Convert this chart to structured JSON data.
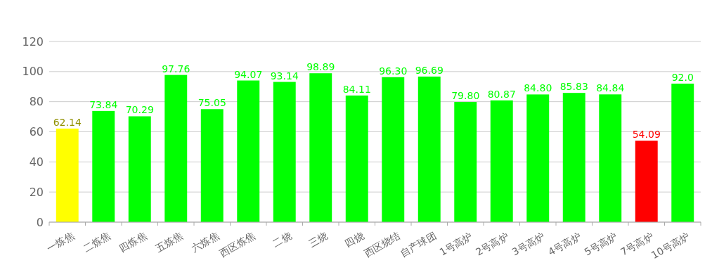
{
  "chart_data": {
    "type": "bar",
    "categories": [
      "一炼焦",
      "二炼焦",
      "四炼焦",
      "五炼焦",
      "六炼焦",
      "西区炼焦",
      "二烧",
      "三烧",
      "四烧",
      "西区烧结",
      "自产球团",
      "1号高炉",
      "2号高炉",
      "3号高炉",
      "4号高炉",
      "5号高炉",
      "7号高炉",
      "10号高炉"
    ],
    "values": [
      62.14,
      73.84,
      70.29,
      97.76,
      75.05,
      94.07,
      93.14,
      98.89,
      84.11,
      96.3,
      96.69,
      79.8,
      80.87,
      84.8,
      85.83,
      84.84,
      54.09,
      92.0
    ],
    "value_labels": [
      "62.14",
      "73.84",
      "70.29",
      "97.76",
      "75.05",
      "94.07",
      "93.14",
      "98.89",
      "84.11",
      "96.30",
      "96.69",
      "79.80",
      "80.87",
      "84.80",
      "85.83",
      "84.84",
      "54.09",
      "92.0"
    ],
    "colors": [
      "#ffff00",
      "#00ff00",
      "#00ff00",
      "#00ff00",
      "#00ff00",
      "#00ff00",
      "#00ff00",
      "#00ff00",
      "#00ff00",
      "#00ff00",
      "#00ff00",
      "#00ff00",
      "#00ff00",
      "#00ff00",
      "#00ff00",
      "#00ff00",
      "#ff0000",
      "#00ff00"
    ],
    "ylim": [
      0,
      120
    ],
    "yticks": [
      0,
      20,
      40,
      60,
      80,
      100,
      120
    ],
    "grid": "y"
  }
}
